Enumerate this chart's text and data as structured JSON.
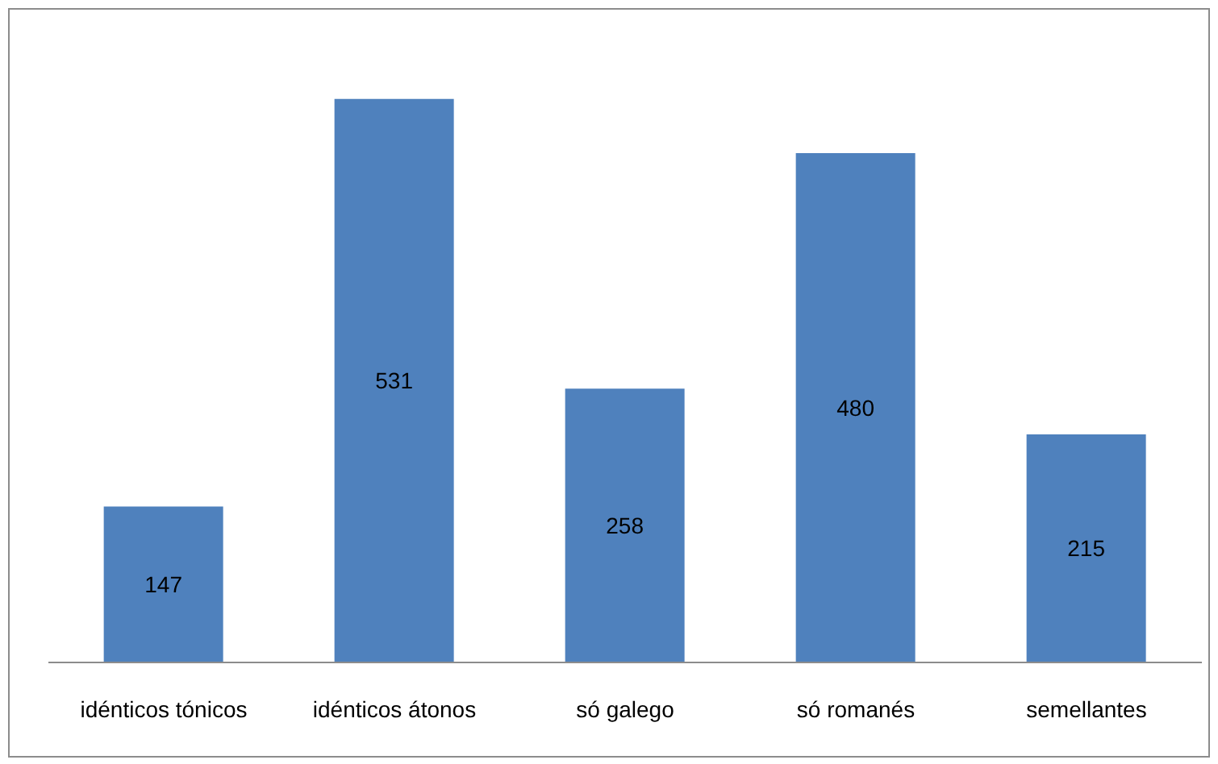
{
  "chart_data": {
    "type": "bar",
    "categories": [
      "idénticos tónicos",
      "idénticos átonos",
      "só galego",
      "só romanés",
      "semellantes"
    ],
    "values": [
      147,
      531,
      258,
      480,
      215
    ],
    "color": "#4f81bd",
    "data_labels": true
  }
}
